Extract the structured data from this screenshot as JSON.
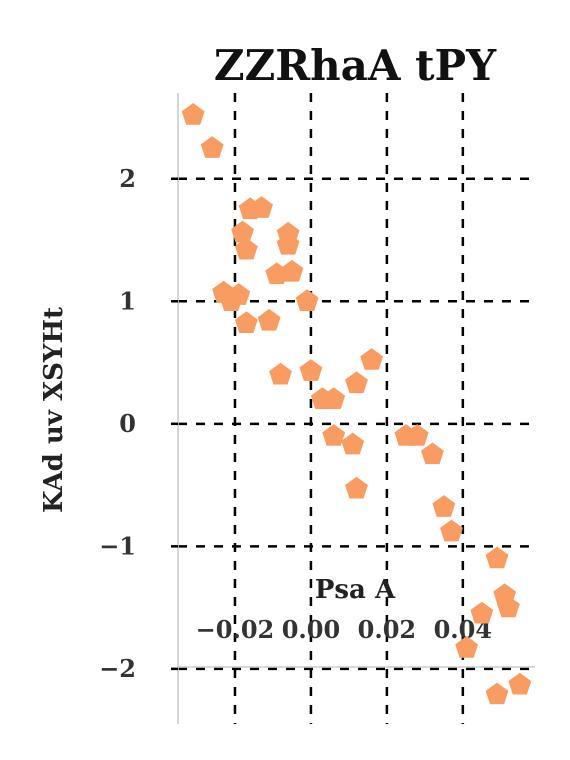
{
  "chart_data": {
    "type": "scatter",
    "title": "ZZRhaA tPY",
    "xlabel": "Psa A",
    "ylabel": "KAd uv XSYHt",
    "x_ticks": [
      -0.02,
      0.0,
      0.02,
      0.04
    ],
    "x_tick_labels": [
      "−0.02",
      "0.00",
      "0.02",
      "0.04"
    ],
    "y_ticks": [
      -2,
      -1,
      0,
      1,
      2
    ],
    "y_tick_labels": [
      "−2",
      "−1",
      "0",
      "1",
      "2"
    ],
    "xlim": [
      -0.035,
      0.059
    ],
    "ylim": [
      -2.45,
      2.7
    ],
    "grid": true,
    "marker": "pentagon",
    "color": "#f99c62",
    "series": [
      {
        "points": [
          [
            -0.031,
            2.52
          ],
          [
            -0.026,
            2.25
          ],
          [
            -0.023,
            1.07
          ],
          [
            -0.021,
            1.0
          ],
          [
            -0.019,
            1.05
          ],
          [
            -0.018,
            1.56
          ],
          [
            -0.016,
            1.75
          ],
          [
            -0.013,
            1.76
          ],
          [
            -0.017,
            1.42
          ],
          [
            -0.006,
            1.55
          ],
          [
            -0.006,
            1.46
          ],
          [
            -0.009,
            1.22
          ],
          [
            -0.005,
            1.24
          ],
          [
            -0.017,
            0.82
          ],
          [
            -0.011,
            0.84
          ],
          [
            -0.001,
            1.0
          ],
          [
            -0.008,
            0.4
          ],
          [
            0.0,
            0.43
          ],
          [
            0.003,
            0.2
          ],
          [
            0.006,
            0.2
          ],
          [
            0.012,
            0.33
          ],
          [
            0.016,
            0.52
          ],
          [
            0.006,
            -0.1
          ],
          [
            0.011,
            -0.17
          ],
          [
            0.025,
            -0.1
          ],
          [
            0.028,
            -0.1
          ],
          [
            0.032,
            -0.25
          ],
          [
            0.012,
            -0.53
          ],
          [
            0.035,
            -0.68
          ],
          [
            0.037,
            -0.88
          ],
          [
            0.041,
            -1.83
          ],
          [
            0.045,
            -1.55
          ],
          [
            0.049,
            -1.1
          ],
          [
            0.051,
            -1.4
          ],
          [
            0.052,
            -1.5
          ],
          [
            0.049,
            -2.21
          ],
          [
            0.055,
            -2.13
          ]
        ]
      }
    ]
  }
}
